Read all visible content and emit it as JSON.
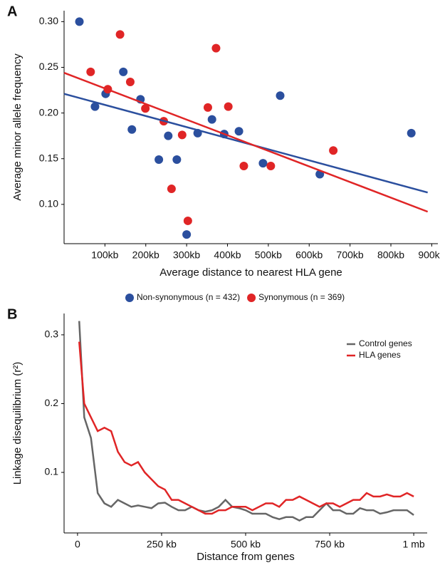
{
  "chart_data": [
    {
      "type": "scatter",
      "panel": "A",
      "x_label": "Average distance to nearest HLA gene",
      "y_label": "Average minor allele frequency",
      "xlim": [
        0,
        915
      ],
      "ylim": [
        0.057,
        0.312
      ],
      "xticks": [
        {
          "value": 100,
          "label": "100kb"
        },
        {
          "value": 200,
          "label": "200kb"
        },
        {
          "value": 300,
          "label": "300kb"
        },
        {
          "value": 400,
          "label": "400kb"
        },
        {
          "value": 500,
          "label": "500kb"
        },
        {
          "value": 600,
          "label": "600kb"
        },
        {
          "value": 700,
          "label": "700kb"
        },
        {
          "value": 800,
          "label": "800kb"
        },
        {
          "value": 900,
          "label": "900kb"
        }
      ],
      "yticks": [
        {
          "value": 0.1,
          "label": "0.10"
        },
        0.15,
        {
          "value": 0.2,
          "label": "0.20"
        },
        0.25,
        {
          "value": 0.3,
          "label": "0.30"
        }
      ],
      "legend": "bottom",
      "series": [
        {
          "name": "Non-synonymous (n = 432)",
          "color": "#2b4f9e",
          "x": [
            37.5,
            75.7,
            101.7,
            145,
            166,
            187,
            232,
            255,
            276,
            300,
            327,
            362,
            392,
            428,
            487,
            529,
            626,
            850
          ],
          "values": [
            0.3,
            0.207,
            0.221,
            0.245,
            0.182,
            0.215,
            0.149,
            0.175,
            0.149,
            0.067,
            0.178,
            0.193,
            0.177,
            0.18,
            0.145,
            0.219,
            0.133,
            0.178
          ],
          "fit_x": [
            0,
            890
          ],
          "fit_y": [
            0.221,
            0.113
          ]
        },
        {
          "name": "Synonymous (n = 369)",
          "color": "#e02526",
          "x": [
            65,
            107,
            137,
            162,
            199,
            244,
            263,
            289,
            303,
            352,
            372,
            402,
            440,
            506,
            659
          ],
          "values": [
            0.245,
            0.226,
            0.286,
            0.234,
            0.205,
            0.191,
            0.117,
            0.176,
            0.082,
            0.206,
            0.271,
            0.207,
            0.142,
            0.142,
            0.159
          ],
          "fit_x": [
            0,
            890
          ],
          "fit_y": [
            0.244,
            0.092
          ]
        }
      ]
    },
    {
      "type": "line",
      "panel": "B",
      "x_label": "Distance from genes",
      "y_label": "Linkage disequilibrium (r²)",
      "xlim": [
        -40,
        1040
      ],
      "ylim": [
        0.012,
        0.331
      ],
      "xticks": [
        0,
        {
          "value": 250,
          "label": "250 kb"
        },
        {
          "value": 500,
          "label": "500 kb"
        },
        {
          "value": 750,
          "label": "750 kb"
        },
        {
          "value": 1000,
          "label": "1 mb"
        }
      ],
      "yticks": [
        0.1,
        0.2,
        0.3
      ],
      "legend": "upper right",
      "x": [
        5,
        20,
        40,
        60,
        80,
        100,
        120,
        140,
        160,
        180,
        200,
        220,
        240,
        260,
        280,
        300,
        320,
        340,
        360,
        380,
        400,
        420,
        440,
        460,
        480,
        500,
        520,
        540,
        560,
        580,
        600,
        620,
        640,
        660,
        680,
        700,
        720,
        740,
        760,
        780,
        800,
        820,
        840,
        860,
        880,
        900,
        920,
        940,
        960,
        980,
        1000
      ],
      "series": [
        {
          "name": "Control genes",
          "color": "#666666",
          "values": [
            0.32,
            0.18,
            0.15,
            0.07,
            0.055,
            0.05,
            0.06,
            0.055,
            0.05,
            0.052,
            0.05,
            0.048,
            0.055,
            0.056,
            0.05,
            0.045,
            0.045,
            0.05,
            0.045,
            0.043,
            0.045,
            0.05,
            0.06,
            0.05,
            0.048,
            0.045,
            0.04,
            0.04,
            0.04,
            0.035,
            0.032,
            0.035,
            0.035,
            0.03,
            0.035,
            0.035,
            0.045,
            0.055,
            0.045,
            0.045,
            0.04,
            0.04,
            0.048,
            0.045,
            0.045,
            0.04,
            0.042,
            0.045,
            0.045,
            0.045,
            0.038
          ]
        },
        {
          "name": "HLA genes",
          "color": "#e02526",
          "values": [
            0.29,
            0.2,
            0.18,
            0.16,
            0.165,
            0.16,
            0.13,
            0.115,
            0.11,
            0.115,
            0.1,
            0.09,
            0.08,
            0.075,
            0.06,
            0.06,
            0.055,
            0.05,
            0.045,
            0.04,
            0.04,
            0.045,
            0.045,
            0.05,
            0.05,
            0.05,
            0.045,
            0.05,
            0.055,
            0.055,
            0.05,
            0.06,
            0.06,
            0.065,
            0.06,
            0.055,
            0.05,
            0.055,
            0.055,
            0.05,
            0.055,
            0.06,
            0.06,
            0.07,
            0.065,
            0.065,
            0.068,
            0.065,
            0.065,
            0.07,
            0.065
          ]
        }
      ]
    }
  ]
}
